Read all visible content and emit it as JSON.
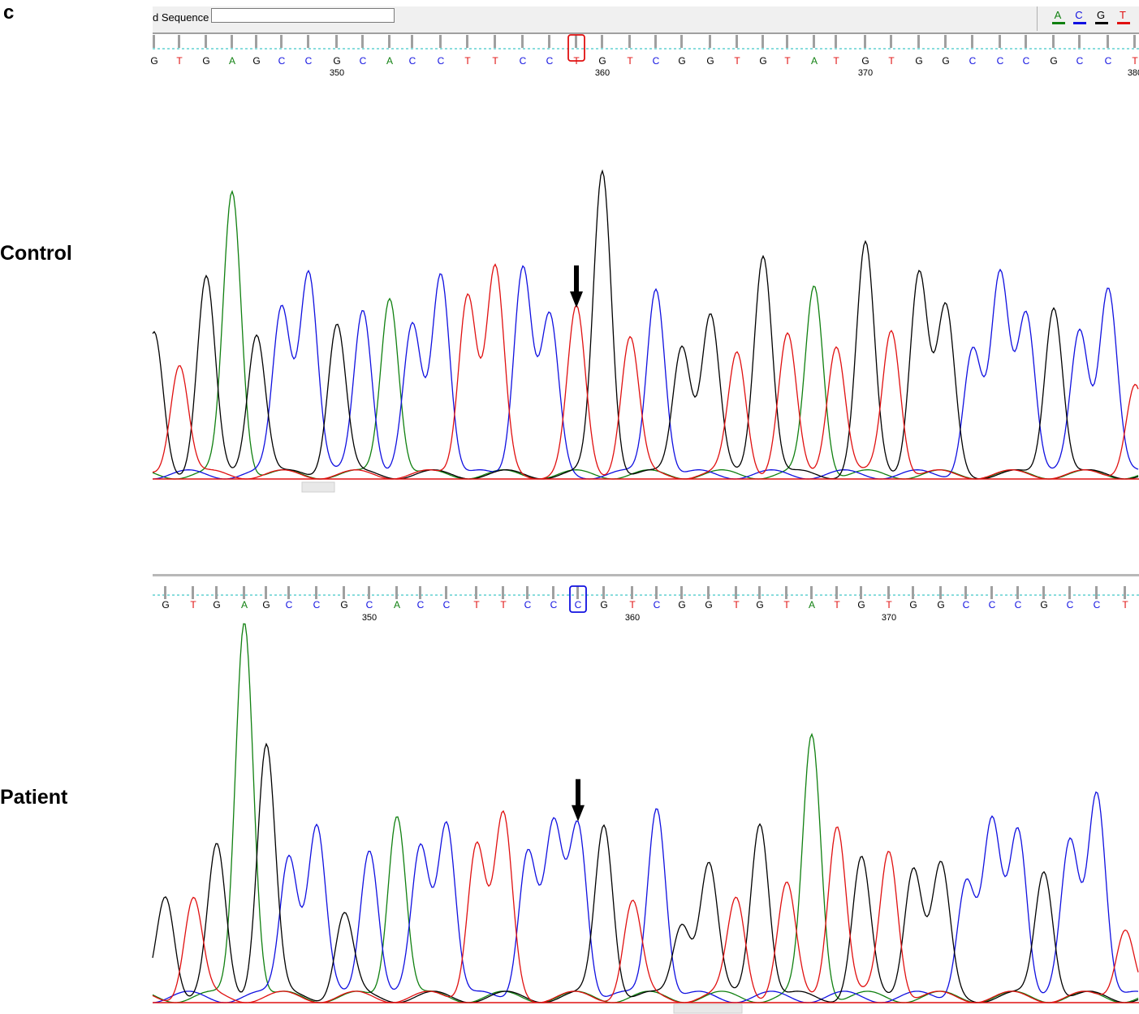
{
  "panel_letter": "c",
  "toolbar": {
    "label": "d Sequence",
    "input_value": ""
  },
  "legend": [
    {
      "base": "A",
      "color": "#108010"
    },
    {
      "base": "C",
      "color": "#1010e0"
    },
    {
      "base": "G",
      "color": "#000000"
    },
    {
      "base": "T",
      "color": "#e01010"
    }
  ],
  "base_colors": {
    "A": "#108010",
    "C": "#1010e0",
    "G": "#000000",
    "T": "#e01010"
  },
  "chart_data": [
    {
      "type": "line",
      "label": "Control",
      "sequence": [
        "G",
        "T",
        "G",
        "A",
        "G",
        "C",
        "C",
        "G",
        "C",
        "A",
        "C",
        "C",
        "T",
        "T",
        "C",
        "C",
        "T",
        "G",
        "T",
        "C",
        "G",
        "G",
        "T",
        "G",
        "T",
        "A",
        "T",
        "G",
        "T",
        "G",
        "G",
        "C",
        "C",
        "C",
        "G",
        "C",
        "C",
        "T"
      ],
      "position_ticks": [
        "350",
        "360",
        "370",
        "380"
      ],
      "highlighted_base": "T",
      "highlight_color": "#e01010",
      "peak_heights": [
        0.46,
        0.37,
        0.64,
        0.93,
        0.47,
        0.55,
        0.67,
        0.5,
        0.55,
        0.59,
        0.48,
        0.67,
        0.6,
        0.67,
        0.69,
        0.51,
        0.54,
        1.0,
        0.45,
        0.62,
        0.43,
        0.52,
        0.4,
        0.73,
        0.45,
        0.62,
        0.43,
        0.75,
        0.48,
        0.67,
        0.54,
        0.41,
        0.65,
        0.54,
        0.56,
        0.47,
        0.62,
        0.3
      ]
    },
    {
      "type": "line",
      "label": "Patient",
      "sequence": [
        "G",
        "T",
        "G",
        "A",
        "G",
        "C",
        "C",
        "G",
        "C",
        "A",
        "C",
        "C",
        "T",
        "T",
        "C",
        "C",
        "C",
        "G",
        "T",
        "C",
        "G",
        "G",
        "T",
        "G",
        "T",
        "A",
        "T",
        "G",
        "T",
        "G",
        "G",
        "C",
        "C",
        "C",
        "G",
        "C",
        "C",
        "T"
      ],
      "position_ticks": [
        "350",
        "360",
        "370"
      ],
      "highlighted_base": "C",
      "highlight_color": "#1010e0",
      "peak_heights": [
        0.27,
        0.26,
        0.39,
        1.0,
        0.67,
        0.38,
        0.45,
        0.22,
        0.4,
        0.49,
        0.39,
        0.47,
        0.41,
        0.47,
        0.39,
        0.44,
        0.46,
        0.46,
        0.25,
        0.51,
        0.2,
        0.35,
        0.26,
        0.47,
        0.29,
        0.69,
        0.46,
        0.36,
        0.39,
        0.35,
        0.34,
        0.31,
        0.45,
        0.45,
        0.34,
        0.4,
        0.55,
        0.19
      ]
    }
  ]
}
